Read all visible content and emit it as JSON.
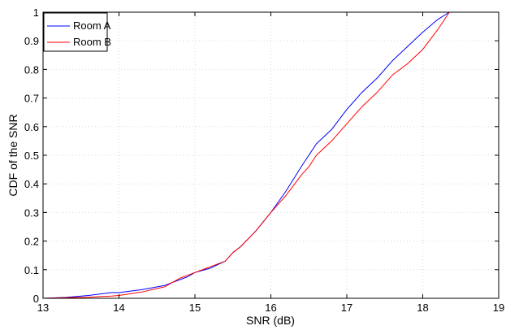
{
  "chart_data": {
    "type": "line",
    "xlabel": "SNR (dB)",
    "ylabel": "CDF of the SNR",
    "xlim": [
      13,
      19
    ],
    "ylim": [
      0,
      1
    ],
    "xticks": [
      "13",
      "14",
      "15",
      "16",
      "17",
      "18",
      "19"
    ],
    "yticks": [
      "0",
      "0.1",
      "0.2",
      "0.3",
      "0.4",
      "0.5",
      "0.6",
      "0.7",
      "0.8",
      "0.9",
      "1"
    ],
    "grid": true,
    "legend_position": "top-left",
    "series": [
      {
        "name": "Room A",
        "color": "#0000ff",
        "x": [
          13.0,
          13.3,
          13.6,
          13.9,
          14.0,
          14.3,
          14.6,
          14.9,
          15.0,
          15.2,
          15.4,
          15.5,
          15.6,
          15.8,
          16.0,
          16.2,
          16.4,
          16.5,
          16.6,
          16.8,
          17.0,
          17.2,
          17.4,
          17.6,
          17.8,
          18.0,
          18.2,
          18.35
        ],
        "y": [
          0.0,
          0.003,
          0.01,
          0.02,
          0.02,
          0.03,
          0.045,
          0.075,
          0.09,
          0.105,
          0.13,
          0.16,
          0.18,
          0.235,
          0.3,
          0.375,
          0.46,
          0.5,
          0.54,
          0.59,
          0.66,
          0.72,
          0.77,
          0.83,
          0.88,
          0.93,
          0.975,
          1.0
        ]
      },
      {
        "name": "Room B",
        "color": "#ff0000",
        "x": [
          13.0,
          13.3,
          13.6,
          13.9,
          14.0,
          14.3,
          14.6,
          14.8,
          15.0,
          15.2,
          15.4,
          15.5,
          15.6,
          15.8,
          16.0,
          16.2,
          16.4,
          16.5,
          16.6,
          16.8,
          17.0,
          17.2,
          17.4,
          17.6,
          17.8,
          18.0,
          18.2,
          18.35
        ],
        "y": [
          0.0,
          0.002,
          0.004,
          0.008,
          0.01,
          0.022,
          0.04,
          0.07,
          0.09,
          0.11,
          0.13,
          0.16,
          0.18,
          0.235,
          0.3,
          0.36,
          0.43,
          0.46,
          0.5,
          0.55,
          0.61,
          0.67,
          0.72,
          0.78,
          0.82,
          0.87,
          0.94,
          1.0
        ]
      }
    ]
  }
}
